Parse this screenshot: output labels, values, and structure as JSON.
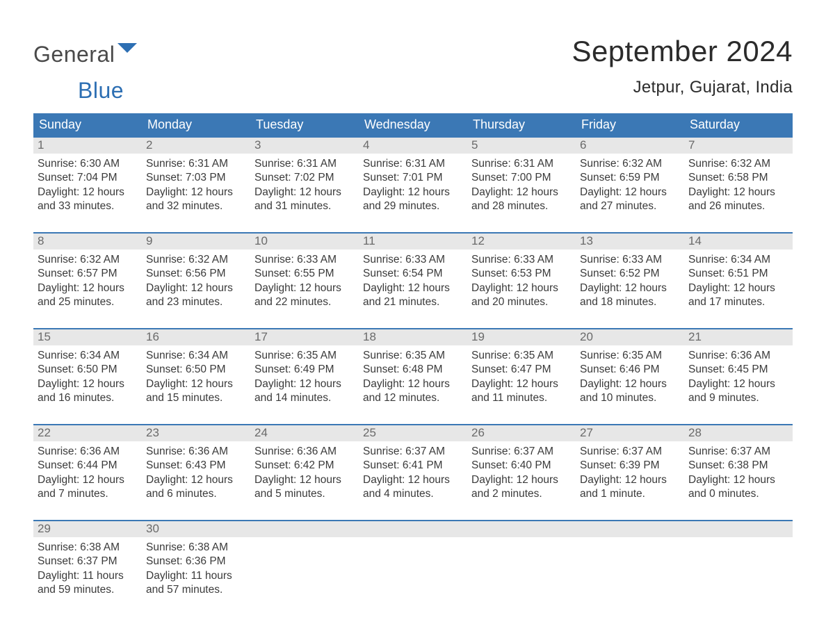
{
  "brand": {
    "part1": "General",
    "part2": "Blue",
    "mark_color": "#2d6fb3"
  },
  "title": "September 2024",
  "location": "Jetpur, Gujarat, India",
  "colors": {
    "header_bg": "#3b78b5",
    "header_text": "#ffffff",
    "week_border": "#3b78b5",
    "daynum_bg": "#e7e7e7",
    "daynum_text": "#6a6a6a",
    "body_text": "#3a3a3a",
    "page_bg": "#ffffff",
    "title_text": "#2b2b2b"
  },
  "typography": {
    "title_fontsize": 42,
    "location_fontsize": 24,
    "weekday_fontsize": 18,
    "daynum_fontsize": 17,
    "body_fontsize": 15.5,
    "font_family": "Arial, Helvetica, sans-serif"
  },
  "labels": {
    "sunrise_prefix": "Sunrise: ",
    "sunset_prefix": "Sunset: ",
    "daylight_prefix": "Daylight: "
  },
  "weekdays": [
    "Sunday",
    "Monday",
    "Tuesday",
    "Wednesday",
    "Thursday",
    "Friday",
    "Saturday"
  ],
  "weeks": [
    [
      {
        "day": 1,
        "sunrise": "6:30 AM",
        "sunset": "7:04 PM",
        "daylight": "12 hours and 33 minutes."
      },
      {
        "day": 2,
        "sunrise": "6:31 AM",
        "sunset": "7:03 PM",
        "daylight": "12 hours and 32 minutes."
      },
      {
        "day": 3,
        "sunrise": "6:31 AM",
        "sunset": "7:02 PM",
        "daylight": "12 hours and 31 minutes."
      },
      {
        "day": 4,
        "sunrise": "6:31 AM",
        "sunset": "7:01 PM",
        "daylight": "12 hours and 29 minutes."
      },
      {
        "day": 5,
        "sunrise": "6:31 AM",
        "sunset": "7:00 PM",
        "daylight": "12 hours and 28 minutes."
      },
      {
        "day": 6,
        "sunrise": "6:32 AM",
        "sunset": "6:59 PM",
        "daylight": "12 hours and 27 minutes."
      },
      {
        "day": 7,
        "sunrise": "6:32 AM",
        "sunset": "6:58 PM",
        "daylight": "12 hours and 26 minutes."
      }
    ],
    [
      {
        "day": 8,
        "sunrise": "6:32 AM",
        "sunset": "6:57 PM",
        "daylight": "12 hours and 25 minutes."
      },
      {
        "day": 9,
        "sunrise": "6:32 AM",
        "sunset": "6:56 PM",
        "daylight": "12 hours and 23 minutes."
      },
      {
        "day": 10,
        "sunrise": "6:33 AM",
        "sunset": "6:55 PM",
        "daylight": "12 hours and 22 minutes."
      },
      {
        "day": 11,
        "sunrise": "6:33 AM",
        "sunset": "6:54 PM",
        "daylight": "12 hours and 21 minutes."
      },
      {
        "day": 12,
        "sunrise": "6:33 AM",
        "sunset": "6:53 PM",
        "daylight": "12 hours and 20 minutes."
      },
      {
        "day": 13,
        "sunrise": "6:33 AM",
        "sunset": "6:52 PM",
        "daylight": "12 hours and 18 minutes."
      },
      {
        "day": 14,
        "sunrise": "6:34 AM",
        "sunset": "6:51 PM",
        "daylight": "12 hours and 17 minutes."
      }
    ],
    [
      {
        "day": 15,
        "sunrise": "6:34 AM",
        "sunset": "6:50 PM",
        "daylight": "12 hours and 16 minutes."
      },
      {
        "day": 16,
        "sunrise": "6:34 AM",
        "sunset": "6:50 PM",
        "daylight": "12 hours and 15 minutes."
      },
      {
        "day": 17,
        "sunrise": "6:35 AM",
        "sunset": "6:49 PM",
        "daylight": "12 hours and 14 minutes."
      },
      {
        "day": 18,
        "sunrise": "6:35 AM",
        "sunset": "6:48 PM",
        "daylight": "12 hours and 12 minutes."
      },
      {
        "day": 19,
        "sunrise": "6:35 AM",
        "sunset": "6:47 PM",
        "daylight": "12 hours and 11 minutes."
      },
      {
        "day": 20,
        "sunrise": "6:35 AM",
        "sunset": "6:46 PM",
        "daylight": "12 hours and 10 minutes."
      },
      {
        "day": 21,
        "sunrise": "6:36 AM",
        "sunset": "6:45 PM",
        "daylight": "12 hours and 9 minutes."
      }
    ],
    [
      {
        "day": 22,
        "sunrise": "6:36 AM",
        "sunset": "6:44 PM",
        "daylight": "12 hours and 7 minutes."
      },
      {
        "day": 23,
        "sunrise": "6:36 AM",
        "sunset": "6:43 PM",
        "daylight": "12 hours and 6 minutes."
      },
      {
        "day": 24,
        "sunrise": "6:36 AM",
        "sunset": "6:42 PM",
        "daylight": "12 hours and 5 minutes."
      },
      {
        "day": 25,
        "sunrise": "6:37 AM",
        "sunset": "6:41 PM",
        "daylight": "12 hours and 4 minutes."
      },
      {
        "day": 26,
        "sunrise": "6:37 AM",
        "sunset": "6:40 PM",
        "daylight": "12 hours and 2 minutes."
      },
      {
        "day": 27,
        "sunrise": "6:37 AM",
        "sunset": "6:39 PM",
        "daylight": "12 hours and 1 minute."
      },
      {
        "day": 28,
        "sunrise": "6:37 AM",
        "sunset": "6:38 PM",
        "daylight": "12 hours and 0 minutes."
      }
    ],
    [
      {
        "day": 29,
        "sunrise": "6:38 AM",
        "sunset": "6:37 PM",
        "daylight": "11 hours and 59 minutes."
      },
      {
        "day": 30,
        "sunrise": "6:38 AM",
        "sunset": "6:36 PM",
        "daylight": "11 hours and 57 minutes."
      },
      null,
      null,
      null,
      null,
      null
    ]
  ]
}
